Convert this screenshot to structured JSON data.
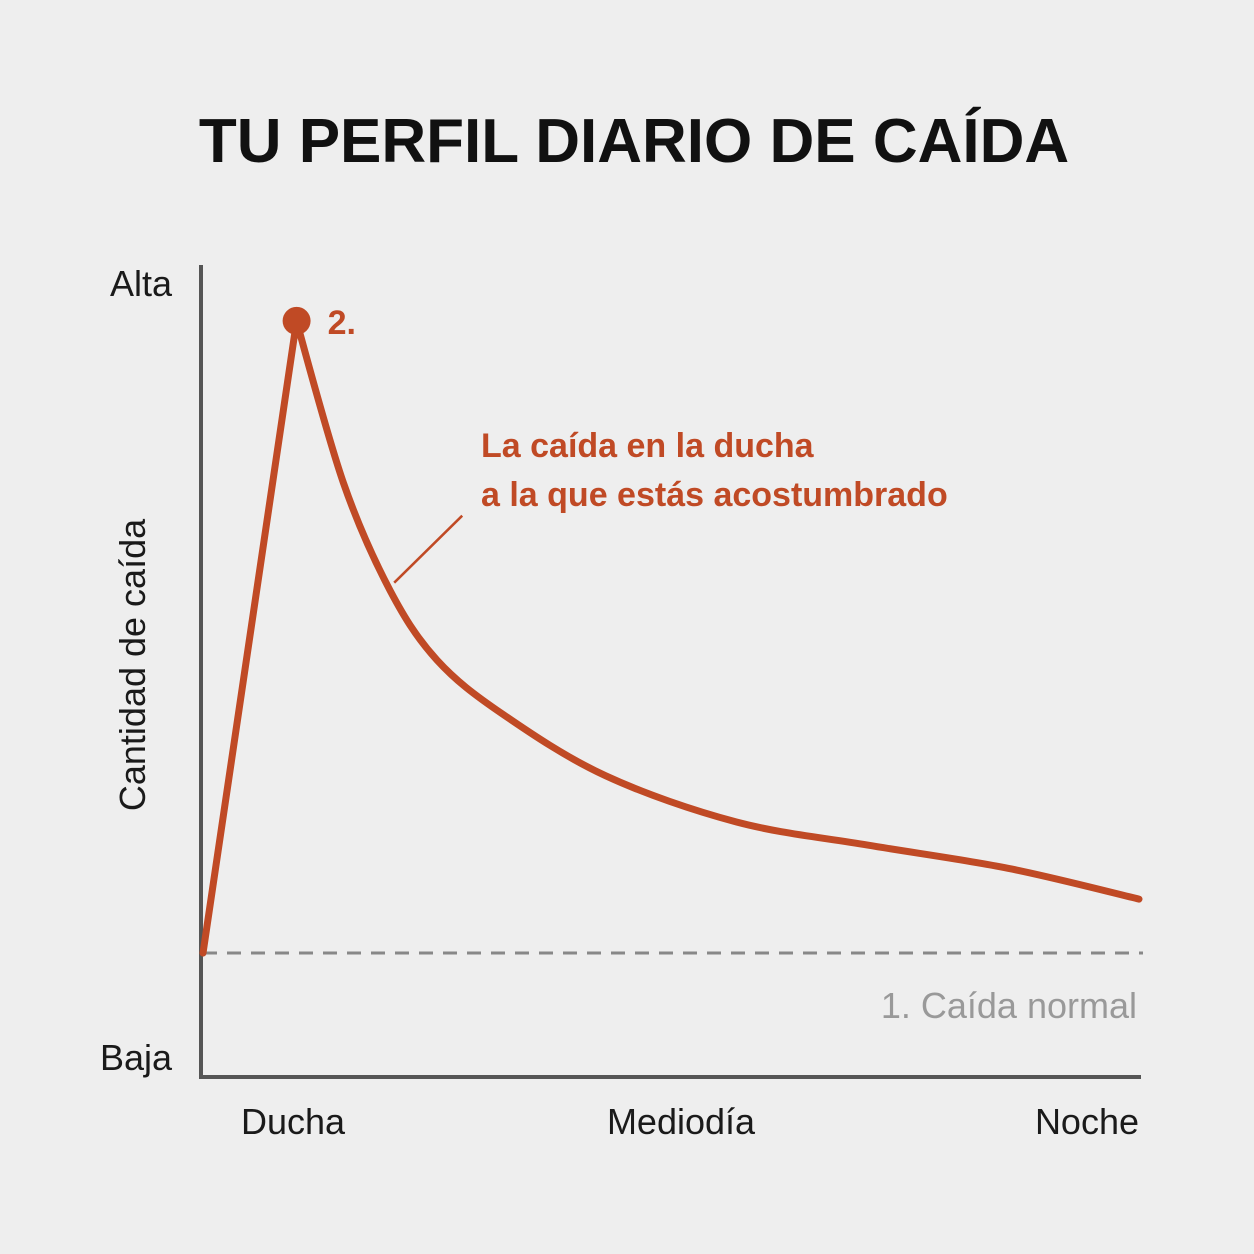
{
  "chart_data": {
    "type": "line",
    "title": "TU PERFIL DIARIO DE CAÍDA",
    "xlabel": "",
    "ylabel": "Cantidad de caída",
    "x_tick_labels": [
      "Ducha",
      "Mediodía",
      "Noche"
    ],
    "y_tick_labels": {
      "top": "Alta",
      "bottom": "Baja"
    },
    "xlim": [
      0,
      100
    ],
    "ylim": [
      0,
      100
    ],
    "grid": false,
    "series": [
      {
        "x": [
          0,
          10,
          15,
          20,
          25,
          32,
          43,
          57,
          71,
          86,
          100
        ],
        "y": [
          14,
          96,
          75,
          61,
          52,
          45,
          37,
          31,
          28,
          25,
          21
        ]
      }
    ],
    "baseline": {
      "y": 14,
      "label": "1. Caída normal"
    },
    "peak_marker": {
      "x": 10,
      "y": 96,
      "label": "2."
    },
    "annotation": {
      "lines": [
        "La caída en la ducha",
        "a la que estás acostumbrado"
      ],
      "x": 20,
      "y": 61
    },
    "colors": {
      "line": "#c04a25",
      "axis": "#555555",
      "baseline": "#888888",
      "baseline_label": "#999999",
      "text": "#1a1a1a"
    }
  }
}
